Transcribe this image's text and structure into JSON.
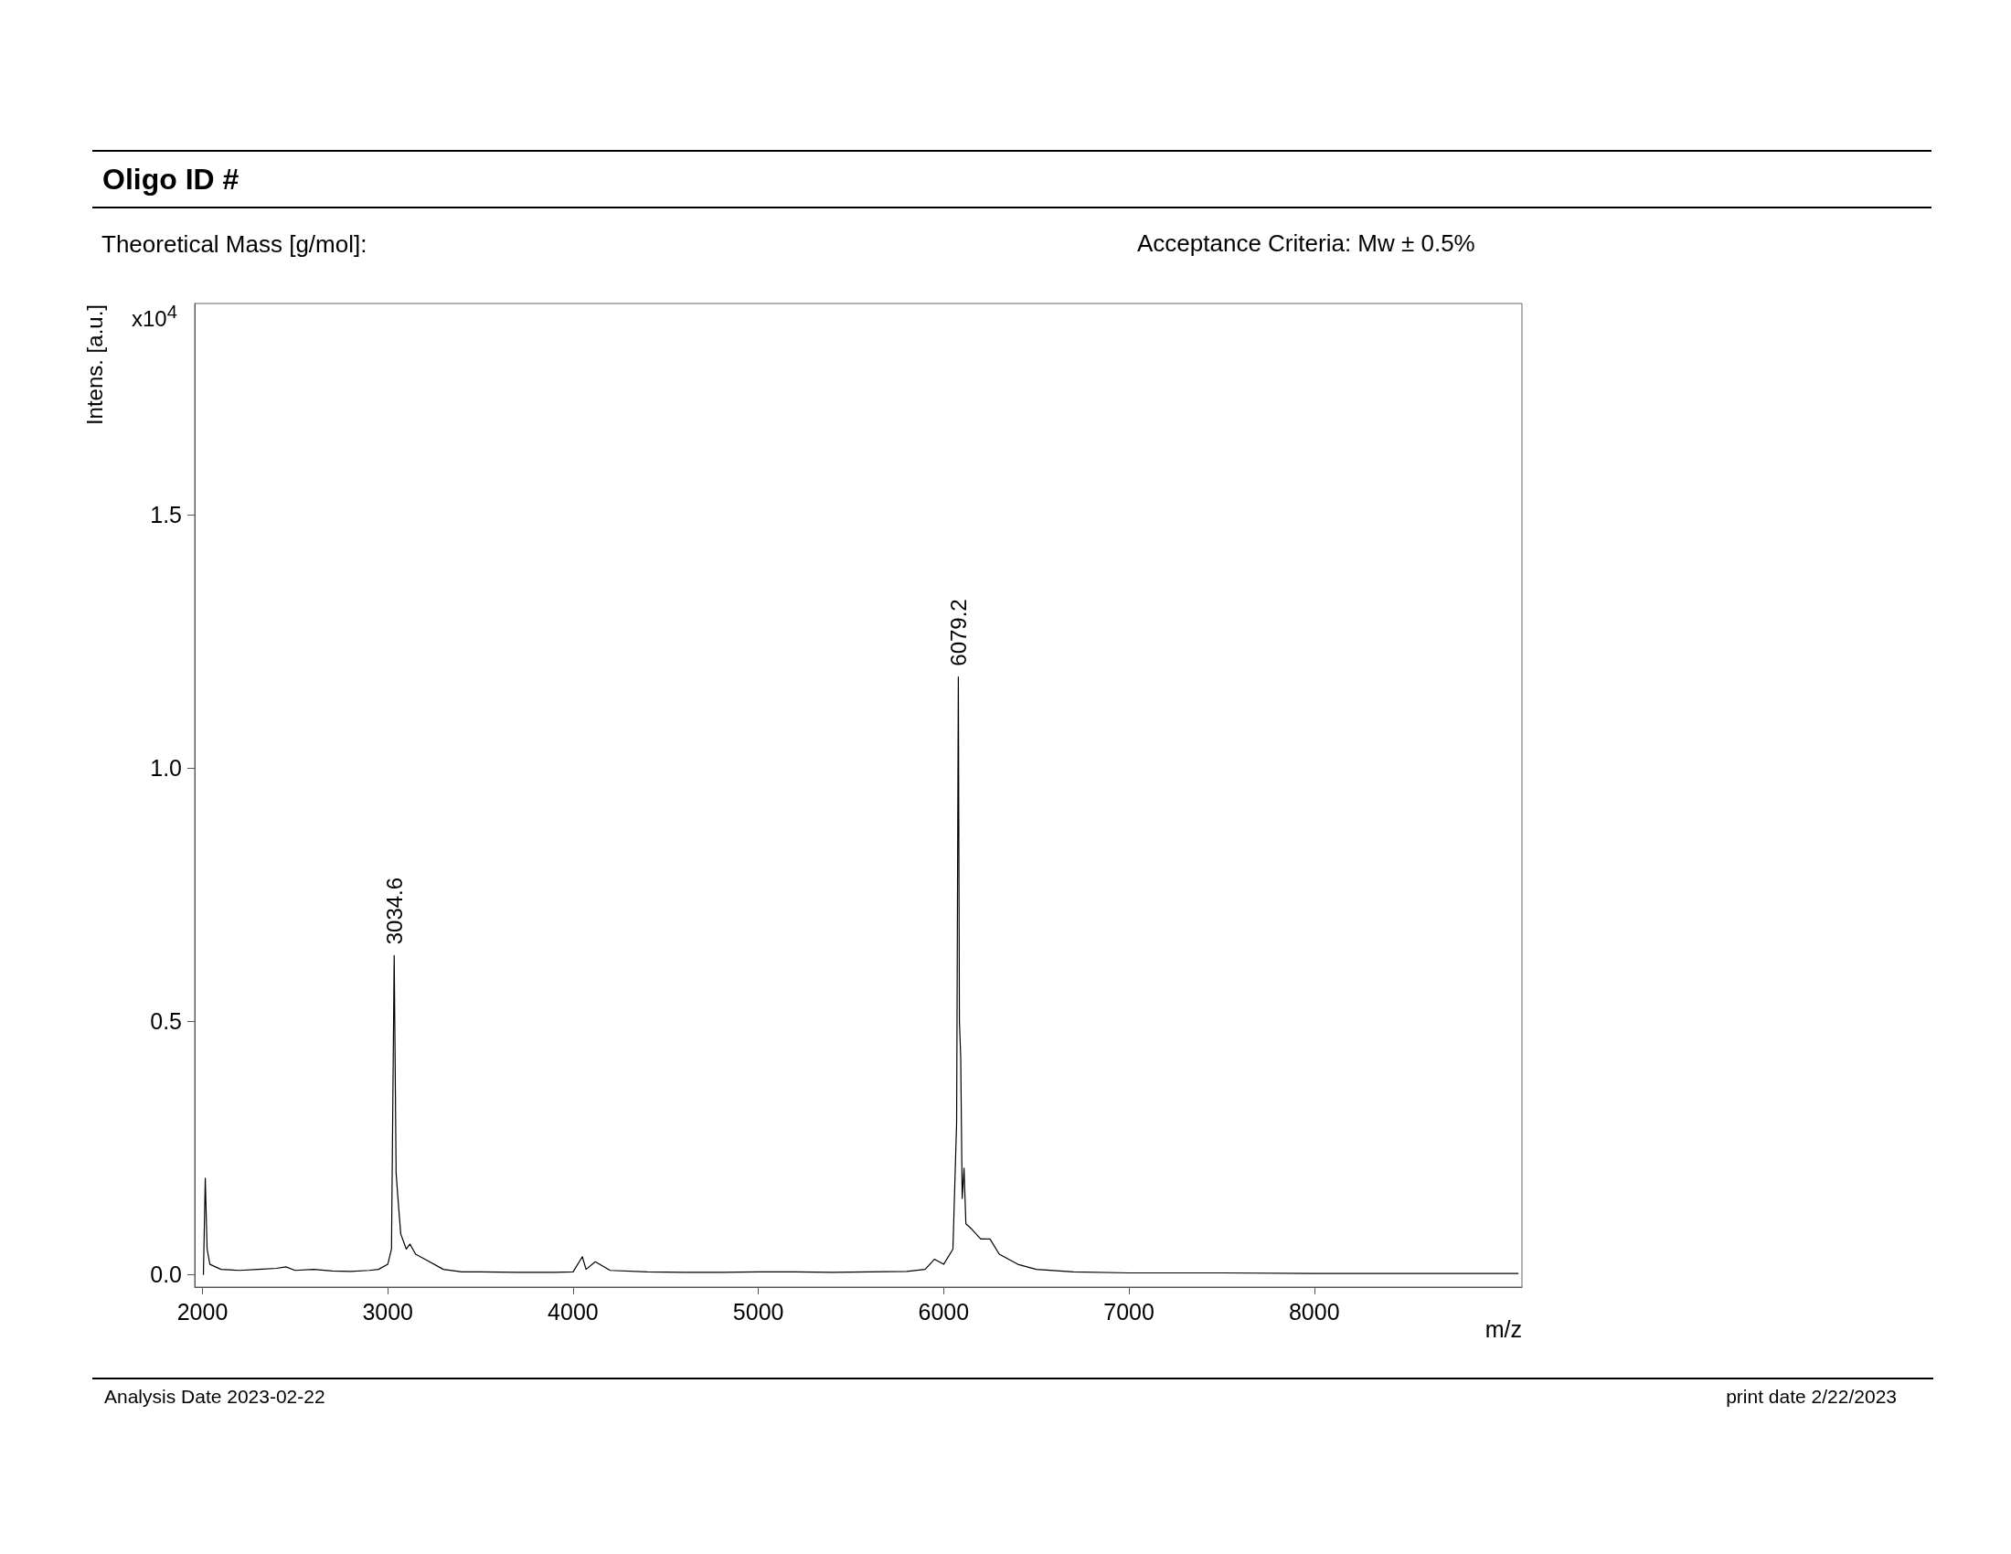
{
  "chart_data": {
    "type": "line",
    "title": "Oligo ID #",
    "subtitle": "Theoretical Mass [g/mol]:",
    "xlabel": "m/z",
    "ylabel": "Intens. [a.u.]",
    "annotations": [
      "x10$^{4}$",
      {
        "text": "3034.6",
        "x": 3034.6,
        "y": 0.63
      },
      {
        "text": "6079.2",
        "x": 6079.2,
        "y": 1.18
      },
      "Acceptance Criteria: Mw ± 0.5%",
      "Analysis Date 2023-02-22",
      "print date  2/22/2023"
    ],
    "x": [
      2005,
      2015,
      2025,
      2040,
      2100,
      2200,
      2300,
      2400,
      2450,
      2500,
      2600,
      2700,
      2800,
      2900,
      2950,
      3000,
      3020,
      3034.6,
      3045,
      3055,
      3070,
      3100,
      3120,
      3150,
      3200,
      3300,
      3400,
      3500,
      3700,
      3900,
      4000,
      4050,
      4070,
      4120,
      4200,
      4400,
      4600,
      4800,
      5000,
      5200,
      5400,
      5600,
      5800,
      5900,
      5950,
      6000,
      6050,
      6070,
      6079.2,
      6085,
      6092,
      6100,
      6110,
      6120,
      6150,
      6200,
      6250,
      6300,
      6400,
      6500,
      6700,
      7000,
      7500,
      8000,
      8500,
      9100
    ],
    "series": [
      {
        "color": "#000000",
        "values": [
          0.0,
          0.19,
          0.05,
          0.02,
          0.01,
          0.008,
          0.01,
          0.012,
          0.015,
          0.008,
          0.01,
          0.007,
          0.006,
          0.008,
          0.01,
          0.02,
          0.05,
          0.63,
          0.2,
          0.15,
          0.08,
          0.05,
          0.06,
          0.04,
          0.03,
          0.01,
          0.005,
          0.005,
          0.004,
          0.004,
          0.005,
          0.035,
          0.01,
          0.025,
          0.008,
          0.005,
          0.004,
          0.004,
          0.005,
          0.005,
          0.004,
          0.005,
          0.006,
          0.01,
          0.03,
          0.02,
          0.05,
          0.3,
          1.18,
          0.5,
          0.43,
          0.15,
          0.21,
          0.1,
          0.09,
          0.07,
          0.07,
          0.04,
          0.02,
          0.01,
          0.005,
          0.003,
          0.003,
          0.002,
          0.002,
          0.002
        ]
      }
    ],
    "xlim": [
      1958,
      9121
    ],
    "ylim": [
      -0.025,
      1.918
    ],
    "xticks": [
      2000,
      3000,
      4000,
      5000,
      6000,
      7000,
      8000
    ],
    "yticks": [
      {
        "value": 0,
        "label": "0.0"
      },
      0.5,
      {
        "value": 1,
        "label": "1.0"
      },
      1.5
    ]
  }
}
